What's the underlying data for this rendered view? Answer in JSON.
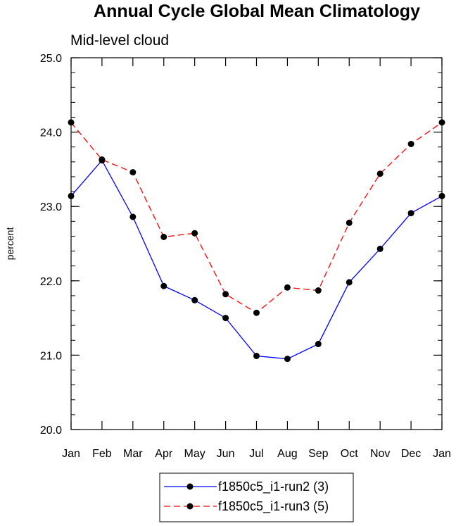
{
  "chart_data": {
    "type": "line",
    "title": "Annual Cycle Global Mean Climatology",
    "subtitle": "Mid-level cloud",
    "xlabel": "",
    "ylabel": "percent",
    "categories": [
      "Jan",
      "Feb",
      "Mar",
      "Apr",
      "May",
      "Jun",
      "Jul",
      "Aug",
      "Sep",
      "Oct",
      "Nov",
      "Dec",
      "Jan"
    ],
    "yticks": [
      "20.0",
      "21.0",
      "22.0",
      "23.0",
      "24.0",
      "25.0"
    ],
    "ylim": [
      20.0,
      25.0
    ],
    "grid": false,
    "legend_position": "bottom-center",
    "series": [
      {
        "name": "f1850c5_i1-run2 (3)",
        "color": "#0000ff",
        "dash": "solid",
        "values": [
          23.14,
          23.62,
          22.86,
          21.93,
          21.74,
          21.5,
          20.99,
          20.95,
          21.15,
          21.98,
          22.43,
          22.91,
          23.14
        ]
      },
      {
        "name": "f1850c5_i1-run3 (5)",
        "color": "#ff0000",
        "dash": "dashed",
        "values": [
          24.13,
          23.63,
          23.46,
          22.59,
          22.64,
          21.82,
          21.57,
          21.91,
          21.87,
          22.78,
          23.44,
          23.84,
          24.13
        ]
      }
    ]
  }
}
